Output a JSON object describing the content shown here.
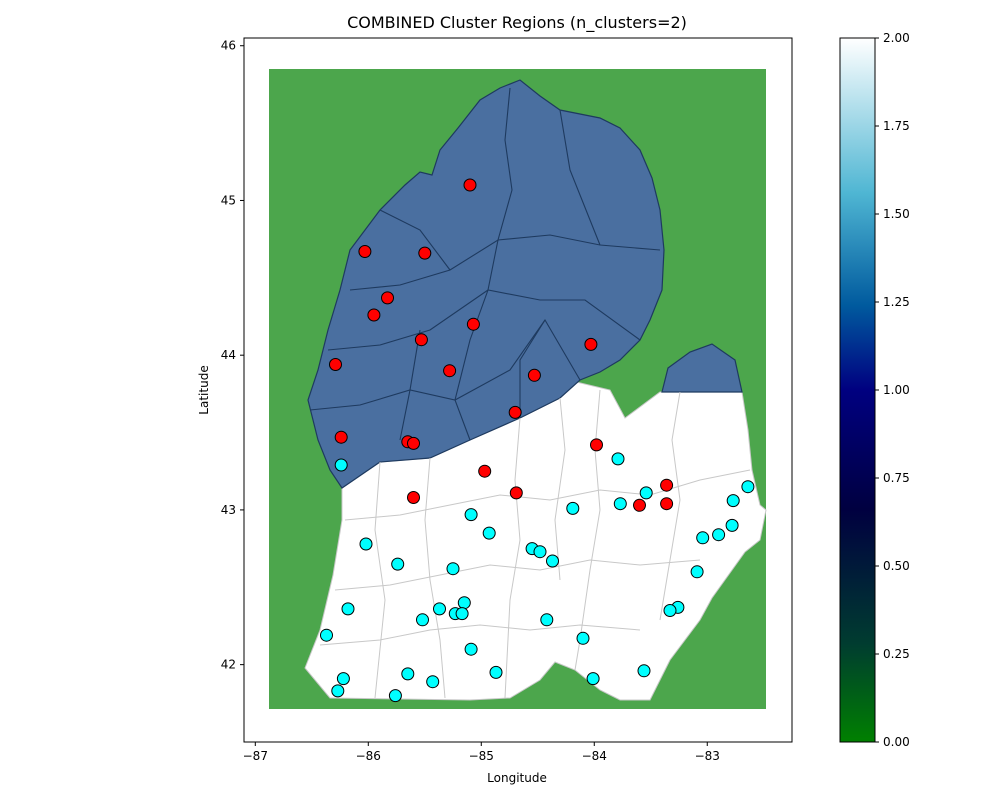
{
  "chart_data": {
    "type": "scatter",
    "title": "COMBINED Cluster Regions (n_clusters=2)",
    "xlabel": "Longitude",
    "ylabel": "Latitude",
    "xlim": [
      -87.1,
      -82.25
    ],
    "ylim": [
      41.5,
      46.05
    ],
    "xticks": [
      -87,
      -86,
      -85,
      -84,
      -83
    ],
    "yticks": [
      42,
      43,
      44,
      45,
      46
    ],
    "grid": false,
    "background_map": {
      "land_color": "#4ca64c",
      "cluster_region_colors": {
        "north": "#4a6fa0",
        "south": "#ffffff"
      }
    },
    "colorbar": {
      "min": 0,
      "max": 2,
      "ticks": [
        "0.00",
        "0.25",
        "0.50",
        "0.75",
        "1.00",
        "1.25",
        "1.50",
        "1.75",
        "2.00"
      ],
      "colormap_stops": [
        "#008000",
        "#003c30",
        "#000040",
        "#000080",
        "#005a9e",
        "#4fb6d3",
        "#ffffff"
      ]
    },
    "series": [
      {
        "color": "#ff0000",
        "points": [
          [
            -85.1,
            45.1
          ],
          [
            -86.03,
            44.67
          ],
          [
            -85.5,
            44.66
          ],
          [
            -85.83,
            44.37
          ],
          [
            -85.95,
            44.26
          ],
          [
            -85.07,
            44.2
          ],
          [
            -85.53,
            44.1
          ],
          [
            -84.03,
            44.07
          ],
          [
            -86.29,
            43.94
          ],
          [
            -85.28,
            43.9
          ],
          [
            -84.53,
            43.87
          ],
          [
            -84.7,
            43.63
          ],
          [
            -86.24,
            43.47
          ],
          [
            -85.65,
            43.44
          ],
          [
            -85.6,
            43.43
          ],
          [
            -83.98,
            43.42
          ],
          [
            -84.97,
            43.25
          ],
          [
            -83.36,
            43.16
          ],
          [
            -84.69,
            43.11
          ],
          [
            -85.6,
            43.08
          ],
          [
            -83.36,
            43.04
          ],
          [
            -83.6,
            43.03
          ]
        ]
      },
      {
        "color": "#00ffff",
        "points": [
          [
            -86.24,
            43.29
          ],
          [
            -83.79,
            43.33
          ],
          [
            -82.64,
            43.15
          ],
          [
            -83.54,
            43.11
          ],
          [
            -82.77,
            43.06
          ],
          [
            -83.77,
            43.04
          ],
          [
            -84.19,
            43.01
          ],
          [
            -85.09,
            42.97
          ],
          [
            -84.93,
            42.85
          ],
          [
            -82.9,
            42.84
          ],
          [
            -83.04,
            42.82
          ],
          [
            -82.78,
            42.9
          ],
          [
            -86.02,
            42.78
          ],
          [
            -84.55,
            42.75
          ],
          [
            -84.48,
            42.73
          ],
          [
            -84.37,
            42.67
          ],
          [
            -85.74,
            42.65
          ],
          [
            -85.25,
            42.62
          ],
          [
            -83.09,
            42.6
          ],
          [
            -85.15,
            42.4
          ],
          [
            -86.18,
            42.36
          ],
          [
            -85.37,
            42.36
          ],
          [
            -83.26,
            42.37
          ],
          [
            -83.33,
            42.35
          ],
          [
            -85.23,
            42.33
          ],
          [
            -85.17,
            42.33
          ],
          [
            -85.52,
            42.29
          ],
          [
            -84.42,
            42.29
          ],
          [
            -86.37,
            42.19
          ],
          [
            -84.1,
            42.17
          ],
          [
            -85.09,
            42.1
          ],
          [
            -85.65,
            41.94
          ],
          [
            -84.87,
            41.95
          ],
          [
            -83.56,
            41.96
          ],
          [
            -86.22,
            41.91
          ],
          [
            -84.01,
            41.91
          ],
          [
            -85.43,
            41.89
          ],
          [
            -86.27,
            41.83
          ],
          [
            -85.76,
            41.8
          ]
        ]
      }
    ]
  }
}
